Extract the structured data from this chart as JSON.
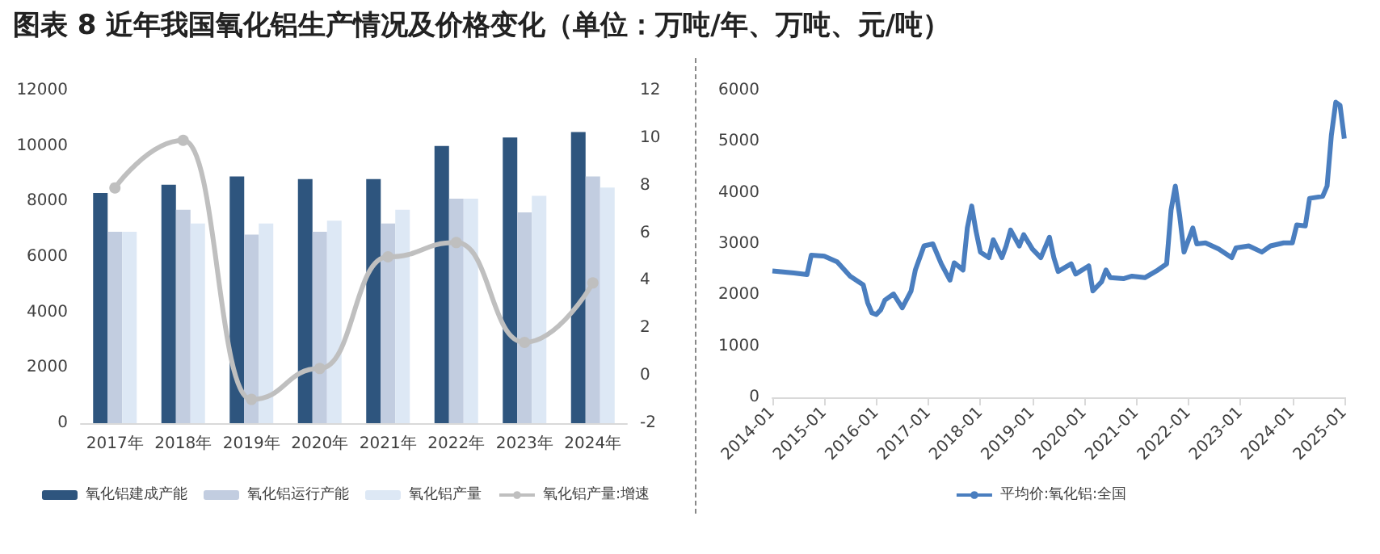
{
  "chart_data": [
    {
      "type": "bar",
      "title": "图表 8   近年我国氧化铝生产情况及价格变化（单位：万吨/年、万吨、元/吨）",
      "categories": [
        "2017年",
        "2018年",
        "2019年",
        "2020年",
        "2021年",
        "2022年",
        "2023年",
        "2024年"
      ],
      "series": [
        {
          "name": "氧化铝建成产能",
          "color": "#2e557e",
          "values": [
            8300,
            8600,
            8900,
            8800,
            8800,
            10000,
            10300,
            10500
          ]
        },
        {
          "name": "氧化铝运行产能",
          "color": "#c2cde0",
          "values": [
            6900,
            7700,
            6800,
            6900,
            7200,
            8100,
            7600,
            8900
          ]
        },
        {
          "name": "氧化铝产量",
          "color": "#dde8f5",
          "values": [
            6900,
            7200,
            7200,
            7300,
            7700,
            8100,
            8200,
            8500
          ]
        },
        {
          "name": "氧化铝产量:增速",
          "type": "line",
          "axis": "y2",
          "color": "#bfbfbf",
          "values": [
            7.9,
            9.9,
            -1.0,
            0.3,
            5.0,
            5.6,
            1.4,
            3.9
          ]
        }
      ],
      "ylim": [
        0,
        12000
      ],
      "yticks": [
        0,
        2000,
        4000,
        6000,
        8000,
        10000,
        12000
      ],
      "y2lim": [
        -2,
        12
      ],
      "y2ticks": [
        -2,
        0,
        2,
        4,
        6,
        8,
        10,
        12
      ],
      "legend": "bottom",
      "marker": "circle"
    },
    {
      "type": "line",
      "x": [
        "2014-01",
        "2014-06",
        "2014-09",
        "2014-10",
        "2015-01",
        "2015-04",
        "2015-07",
        "2015-10",
        "2015-11",
        "2015-12",
        "2016-01",
        "2016-02",
        "2016-03",
        "2016-05",
        "2016-07",
        "2016-09",
        "2016-10",
        "2016-12",
        "2017-02",
        "2017-04",
        "2017-06",
        "2017-07",
        "2017-09",
        "2017-10",
        "2017-11",
        "2017-12",
        "2018-01",
        "2018-03",
        "2018-04",
        "2018-06",
        "2018-07",
        "2018-08",
        "2018-10",
        "2018-11",
        "2019-01",
        "2019-03",
        "2019-05",
        "2019-06",
        "2019-07",
        "2019-10",
        "2019-11",
        "2020-02",
        "2020-03",
        "2020-05",
        "2020-06",
        "2020-07",
        "2020-10",
        "2020-12",
        "2021-03",
        "2021-06",
        "2021-08",
        "2021-09",
        "2021-10",
        "2021-11",
        "2021-12",
        "2022-02",
        "2022-03",
        "2022-05",
        "2022-08",
        "2022-11",
        "2022-12",
        "2023-03",
        "2023-06",
        "2023-08",
        "2023-11",
        "2024-01",
        "2024-02",
        "2024-04",
        "2024-05",
        "2024-08",
        "2024-09",
        "2024-10",
        "2024-11",
        "2024-12",
        "2024-12-31"
      ],
      "series": [
        {
          "name": "平均价:氧化铝:全国",
          "color": "#4a7ebf",
          "values": [
            2470,
            2430,
            2400,
            2780,
            2760,
            2650,
            2370,
            2200,
            1850,
            1650,
            1620,
            1710,
            1900,
            2020,
            1750,
            2080,
            2490,
            2960,
            3000,
            2610,
            2290,
            2630,
            2490,
            3310,
            3740,
            3250,
            2840,
            2730,
            3080,
            2730,
            2960,
            3270,
            2960,
            3180,
            2900,
            2730,
            3130,
            2730,
            2460,
            2610,
            2410,
            2570,
            2080,
            2260,
            2490,
            2340,
            2320,
            2370,
            2340,
            2490,
            2610,
            3660,
            4130,
            3540,
            2840,
            3310,
            3000,
            3020,
            2900,
            2730,
            2920,
            2960,
            2840,
            2960,
            3020,
            3020,
            3370,
            3350,
            3890,
            3930,
            4130,
            5120,
            5770,
            5710,
            5060
          ]
        }
      ],
      "xlim": [
        "2014-01",
        "2025-01"
      ],
      "xticks": [
        "2014-01",
        "2015-01",
        "2016-01",
        "2017-01",
        "2018-01",
        "2019-01",
        "2020-01",
        "2021-01",
        "2022-01",
        "2023-01",
        "2024-01",
        "2025-01"
      ],
      "ylim": [
        0,
        6000
      ],
      "yticks": [
        0,
        1000,
        2000,
        3000,
        4000,
        5000,
        6000
      ],
      "legend": "bottom"
    }
  ]
}
